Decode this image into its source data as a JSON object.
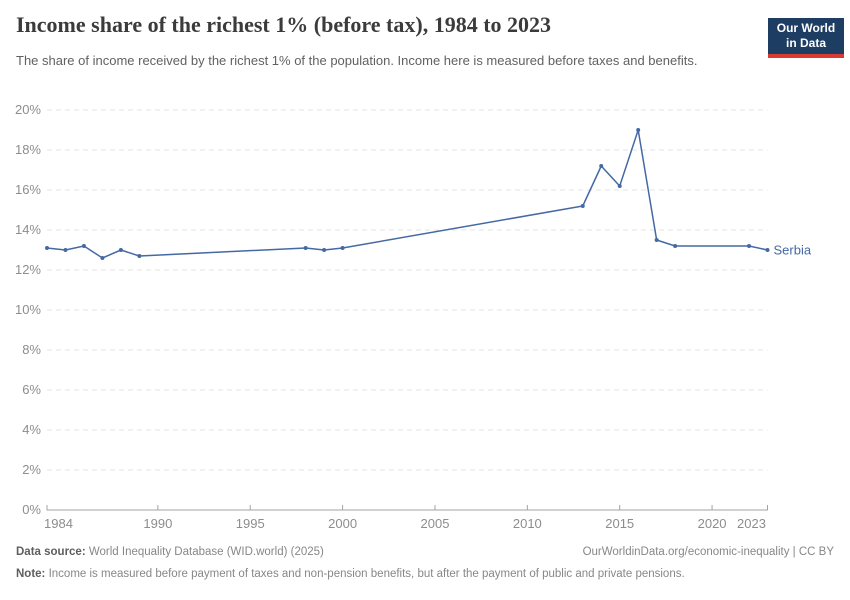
{
  "header": {
    "title": "Income share of the richest 1% (before tax), 1984 to 2023",
    "subtitle": "The share of income received by the richest 1% of the population. Income here is measured before taxes and benefits.",
    "logo": {
      "line1": "Our World",
      "line2": "in Data"
    }
  },
  "chart_data": {
    "type": "line",
    "title": "Income share of the richest 1% (before tax), 1984 to 2023",
    "subtitle": "The share of income received by the richest 1% of the population. Income here is measured before taxes and benefits.",
    "xlabel": "",
    "ylabel": "",
    "xlim": [
      1984,
      2023
    ],
    "ylim": [
      0,
      20
    ],
    "grid": "horizontal-dashed",
    "legend_position": "end-of-line-label",
    "xticks": [
      1984,
      1990,
      1995,
      2000,
      2005,
      2010,
      2015,
      2020,
      2023
    ],
    "yticks": [
      0,
      2,
      4,
      6,
      8,
      10,
      12,
      14,
      16,
      18,
      20
    ],
    "ytick_suffix": "%",
    "x": [
      1984,
      1985,
      1986,
      1987,
      1988,
      1989,
      1998,
      1999,
      2000,
      2013,
      2014,
      2015,
      2016,
      2017,
      2018,
      2022,
      2023
    ],
    "series": [
      {
        "name": "Serbia",
        "values": [
          13.1,
          13.0,
          13.2,
          12.6,
          13.0,
          12.7,
          13.1,
          13.0,
          13.1,
          15.2,
          17.2,
          16.2,
          19.0,
          13.5,
          13.2,
          13.2,
          13.0
        ]
      }
    ]
  },
  "colors": {
    "line": "#4569a3",
    "grid": "#e3e3e3",
    "axis": "#a3a3a3",
    "tick_text": "#8d8d8d",
    "logo_bg": "#1d3d63",
    "logo_stripe": "#d93a34",
    "title_text": "#3b3b3b"
  },
  "footer": {
    "source_label": "Data source:",
    "source_text": " World Inequality Database (WID.world) (2025)",
    "link_text": "OurWorldinData.org/economic-inequality | CC BY",
    "note_label": "Note:",
    "note_text": " Income is measured before payment of taxes and non-pension benefits, but after the payment of public and private pensions."
  }
}
